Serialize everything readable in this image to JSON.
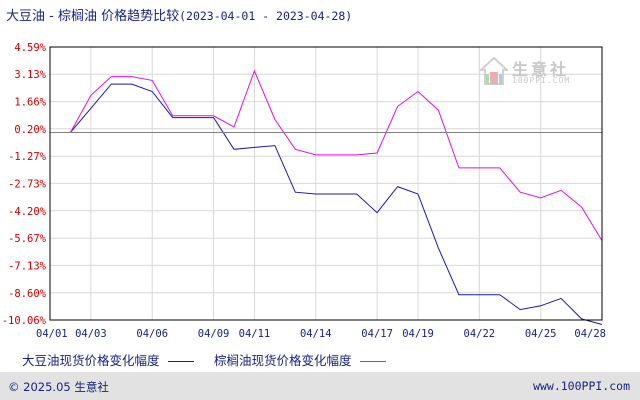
{
  "header": {
    "title": "大豆油 - 棕榈油 价格趋势比较",
    "date_range": "(2023-04-01 - 2023-04-28)"
  },
  "watermark": {
    "name": "生意社",
    "domain": "100PPI.COM",
    "icon": "house-logo-icon"
  },
  "footer": {
    "copyright": "© 2025.05 生意社",
    "site": "www.100PPI.com"
  },
  "colors": {
    "soybean": "#1a1aa8",
    "palm": "#e010e0",
    "axis": "#000000",
    "grid": "#d8d8d8",
    "zero_line": "#808080",
    "text": "#1a237e",
    "footer_bg": "#e2e2e2"
  },
  "chart_data": {
    "type": "line",
    "x": [
      "04/01",
      "04/02",
      "04/03",
      "04/04",
      "04/05",
      "04/06",
      "04/07",
      "04/08",
      "04/09",
      "04/10",
      "04/11",
      "04/12",
      "04/13",
      "04/14",
      "04/15",
      "04/16",
      "04/17",
      "04/18",
      "04/19",
      "04/20",
      "04/21",
      "04/22",
      "04/23",
      "04/24",
      "04/25",
      "04/26",
      "04/27",
      "04/28"
    ],
    "x_tick_labels": [
      "04/01",
      "04/03",
      "04/06",
      "04/09",
      "04/11",
      "04/14",
      "04/17",
      "04/19",
      "04/22",
      "04/25",
      "04/28"
    ],
    "x_tick_index": [
      0,
      2,
      5,
      8,
      10,
      13,
      16,
      18,
      21,
      24,
      27
    ],
    "y_tick_labels": [
      "4.59%",
      "3.13%",
      "1.66%",
      "0.20%",
      "-1.27%",
      "-2.73%",
      "-4.20%",
      "-5.67%",
      "-7.13%",
      "-8.60%",
      "-10.06%"
    ],
    "y_ticks": [
      4.59,
      3.13,
      1.66,
      0.2,
      -1.27,
      -2.73,
      -4.2,
      -5.67,
      -7.13,
      -8.6,
      -10.06
    ],
    "ylim": [
      -10.06,
      4.59
    ],
    "baseline": 0,
    "grid": true,
    "legend_position": "bottom",
    "series": [
      {
        "name": "大豆油现货价格变化幅度",
        "color": "#1a1aa8",
        "values": [
          0.0,
          0.0,
          1.3,
          2.6,
          2.6,
          2.2,
          0.8,
          0.8,
          0.8,
          -0.9,
          -0.8,
          -0.7,
          -3.2,
          -3.3,
          -3.3,
          -3.3,
          -4.3,
          -2.9,
          -3.3,
          -6.2,
          -8.7,
          -8.7,
          -8.7,
          -9.5,
          -9.3,
          -8.9,
          -10.0,
          -10.3
        ]
      },
      {
        "name": "棕榈油现货价格变化幅度",
        "color": "#e010e0",
        "values": [
          0.0,
          0.0,
          2.0,
          3.0,
          3.0,
          2.8,
          0.9,
          0.9,
          0.9,
          0.3,
          3.3,
          0.7,
          -0.9,
          -1.2,
          -1.2,
          -1.2,
          -1.1,
          1.4,
          2.2,
          1.2,
          -1.9,
          -1.9,
          -1.9,
          -3.2,
          -3.5,
          -3.1,
          -4.0,
          -5.8
        ]
      }
    ]
  }
}
